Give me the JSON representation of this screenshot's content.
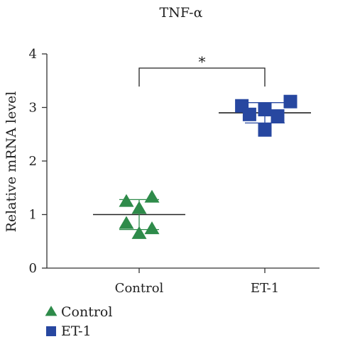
{
  "chart_data": {
    "type": "scatter",
    "title": "TNF-α",
    "xlabel": "",
    "ylabel": "Relative mRNA level",
    "ylim": [
      0,
      4
    ],
    "yticks": [
      0,
      1,
      2,
      3,
      4
    ],
    "categories": [
      "Control",
      "ET-1"
    ],
    "grid": false,
    "legend_position": "bottom-left",
    "significance": {
      "between": [
        "Control",
        "ET-1"
      ],
      "label": "*"
    },
    "series": [
      {
        "name": "Control",
        "marker": "triangle",
        "color": "#2e8b4a",
        "x_offsets": [
          -0.15,
          0.0,
          0.15,
          -0.15,
          0.0,
          0.15
        ],
        "values": [
          1.25,
          1.12,
          1.33,
          0.84,
          0.65,
          0.74
        ],
        "mean": 1.0,
        "sd": 0.28
      },
      {
        "name": "ET-1",
        "marker": "square",
        "color": "#2747a0",
        "x_offsets": [
          -0.27,
          -0.18,
          0.0,
          0.0,
          0.15,
          0.3
        ],
        "values": [
          3.03,
          2.87,
          2.96,
          2.58,
          2.84,
          3.11
        ],
        "mean": 2.9,
        "sd": 0.19
      }
    ]
  }
}
